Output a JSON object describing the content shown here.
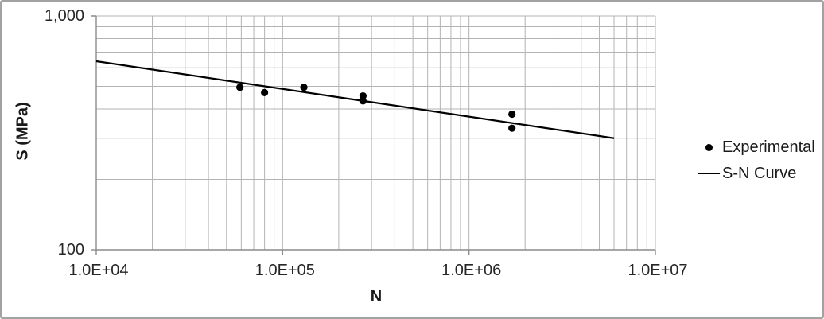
{
  "chart_data": {
    "type": "scatter",
    "title": "",
    "xlabel": "N",
    "ylabel": "S (MPa)",
    "x_axis": {
      "scale": "log",
      "min": 10000,
      "max": 10000000,
      "ticks": [
        {
          "value": 10000,
          "label": "1.0E+04"
        },
        {
          "value": 100000,
          "label": "1.0E+05"
        },
        {
          "value": 1000000,
          "label": "1.0E+06"
        },
        {
          "value": 10000000,
          "label": "1.0E+07"
        }
      ]
    },
    "y_axis": {
      "scale": "log",
      "min": 100,
      "max": 1000,
      "ticks": [
        {
          "value": 100,
          "label": "100"
        },
        {
          "value": 1000,
          "label": "1,000"
        }
      ]
    },
    "grid": {
      "major": true,
      "minor": true
    },
    "legend_position": "right",
    "series": [
      {
        "name": "Experimental",
        "type": "scatter",
        "marker": "circle",
        "points": [
          [
            59000,
            495
          ],
          [
            80000,
            470
          ],
          [
            130000,
            495
          ],
          [
            270000,
            455
          ],
          [
            270000,
            433
          ],
          [
            1700000,
            380
          ],
          [
            1700000,
            331
          ]
        ]
      },
      {
        "name": "S-N Curve",
        "type": "line",
        "points": [
          [
            10000,
            640
          ],
          [
            6000000,
            300
          ]
        ]
      }
    ]
  },
  "colors": {
    "marker": "#000000",
    "curve": "#000000",
    "gridline": "#b3b3b3",
    "axis": "#8c8c8c",
    "tick_text": "#262626",
    "title_text": "#1a1a1a",
    "frame_border": "#a2a2a2",
    "background": "#ffffff"
  }
}
